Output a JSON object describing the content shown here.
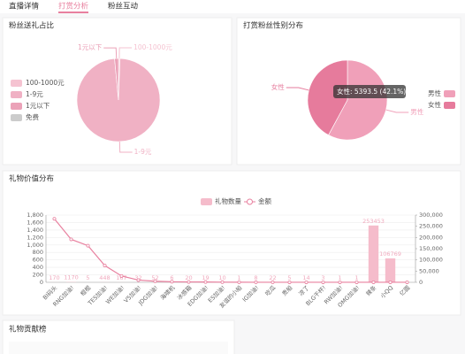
{
  "tabs": [
    "直播详情",
    "打赏分析",
    "粉丝互动"
  ],
  "active_tab": 1,
  "chart_data": [
    {
      "type": "pie",
      "title": "粉丝送礼占比",
      "categories": [
        "100-1000元",
        "1-9元",
        "1元以下",
        "免费"
      ],
      "values": [
        0.6,
        97.9,
        1.5,
        0
      ],
      "colors": [
        "#f5c3d1",
        "#f0b1c4",
        "#eba2b8",
        "#cccccc"
      ],
      "labels_shown": [
        "1元以下",
        "100-1000元",
        "1-9元"
      ],
      "legend": "left"
    },
    {
      "type": "pie",
      "title": "打赏粉丝性别分布",
      "categories": [
        "男性",
        "女性"
      ],
      "values": [
        7417.5,
        5393.5
      ],
      "colors": [
        "#f0a0b9",
        "#e67b9c"
      ],
      "tooltip": "女性: 5393.5 (42.1%)",
      "legend": "right"
    },
    {
      "type": "bar-line",
      "title": "礼物价值分布",
      "categories": [
        "BI码头",
        "RNG加油!",
        "棍棍",
        "TES加油!",
        "WE加油!",
        "V5加油!",
        "JDG加油!",
        "海啸机",
        "冰感箱",
        "EDG加油!",
        "ES加油!",
        "友谊的小船",
        "IG加油!",
        "吃瓜",
        "贵船",
        "凉了",
        "BLG干杯!",
        "RW加油!",
        "OMG加油!",
        "辣条",
        "小QQ",
        "亿圆"
      ],
      "series": [
        {
          "name": "礼物数量",
          "type": "bar",
          "axis": "y2",
          "color": "#f5bccb",
          "values": [
            170,
            1170,
            5,
            448,
            167,
            32,
            52,
            6,
            20,
            19,
            10,
            1,
            8,
            22,
            5,
            14,
            3,
            1,
            1,
            253453,
            106769,
            null
          ]
        },
        {
          "name": "金额",
          "type": "line",
          "axis": "y",
          "color": "#e8809f",
          "values": [
            1700,
            1150,
            980,
            450,
            170,
            60,
            30,
            15,
            10,
            8,
            5,
            3,
            2,
            2,
            1,
            1,
            1,
            1,
            1,
            1,
            1,
            1
          ]
        }
      ],
      "ylim": [
        0,
        1800
      ],
      "yticks": [
        0,
        200,
        400,
        600,
        800,
        {
          "value": 1000,
          "label": "1,000"
        },
        {
          "value": 1200,
          "label": "1,200"
        },
        {
          "value": 1400,
          "label": "1,400"
        },
        {
          "value": 1600,
          "label": "1,600"
        },
        {
          "value": 1800,
          "label": "1,800"
        }
      ],
      "y2lim": [
        0,
        300000
      ],
      "y2ticks": [
        0,
        {
          "value": 50000,
          "label": "50,000"
        },
        {
          "value": 100000,
          "label": "100,000"
        },
        {
          "value": 150000,
          "label": "150,000"
        },
        {
          "value": 200000,
          "label": "200,000"
        },
        {
          "value": 250000,
          "label": "250,000"
        },
        {
          "value": 300000,
          "label": "300,000"
        }
      ],
      "grid": true
    }
  ],
  "ranking": {
    "title": "礼物贡献榜"
  }
}
